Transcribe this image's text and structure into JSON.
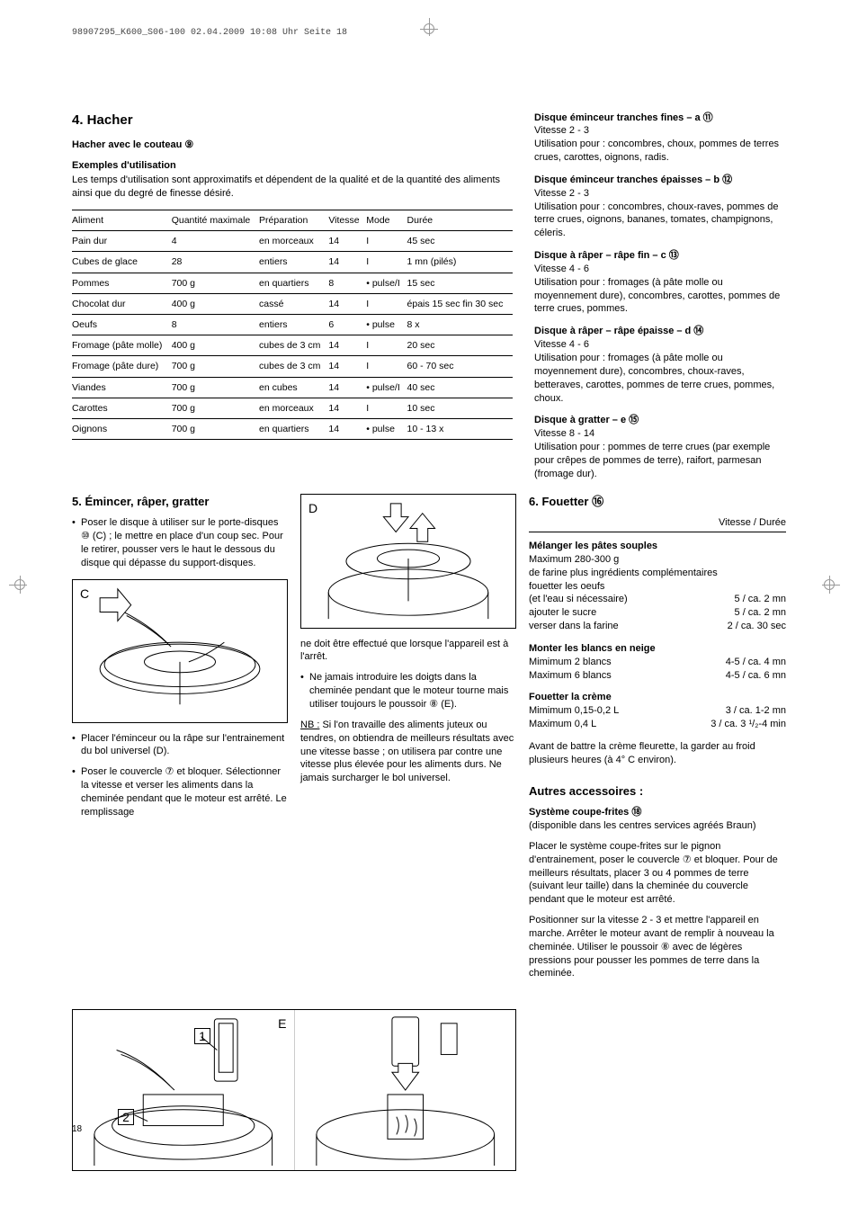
{
  "meta": {
    "header": "98907295_K600_S06-100  02.04.2009  10:08 Uhr  Seite 18",
    "pageNum": "18"
  },
  "sec4": {
    "title": "4. Hacher",
    "sub": "Hacher avec le couteau ⑨",
    "exTitle": "Exemples d'utilisation",
    "intro": "Les temps d'utilisation sont approximatifs et dépendent de la qualité et de la quantité des aliments ainsi que du degré de finesse désiré.",
    "headers": [
      "Aliment",
      "Quantité maximale",
      "Préparation",
      "Vitesse",
      "Mode",
      "Durée"
    ],
    "rows": [
      [
        "Pain dur",
        "4",
        "en morceaux",
        "14",
        "I",
        "45 sec"
      ],
      [
        "Cubes de glace",
        "28",
        "entiers",
        "14",
        "I",
        "1 mn (pilés)"
      ],
      [
        "Pommes",
        "700 g",
        "en quartiers",
        "8",
        "• pulse/I",
        "15 sec"
      ],
      [
        "Chocolat dur",
        "400 g",
        "cassé",
        "14",
        "I",
        "épais 15 sec fin 30 sec"
      ],
      [
        "Oeufs",
        "8",
        "entiers",
        "6",
        "• pulse",
        "8 x"
      ],
      [
        "Fromage (pâte molle)",
        "400 g",
        "cubes de 3 cm",
        "14",
        "I",
        "20 sec"
      ],
      [
        "Fromage (pâte dure)",
        "700 g",
        "cubes de 3 cm",
        "14",
        "I",
        "60 - 70 sec"
      ],
      [
        "Viandes",
        "700 g",
        "en cubes",
        "14",
        "• pulse/I",
        "40 sec"
      ],
      [
        "Carottes",
        "700 g",
        "en morceaux",
        "14",
        "I",
        "10 sec"
      ],
      [
        "Oignons",
        "700 g",
        "en quartiers",
        "14",
        "• pulse",
        "10 - 13 x"
      ]
    ]
  },
  "sec5": {
    "title": "5. Émincer, râper, gratter",
    "p1": "Poser le disque à utiliser sur le porte-disques ⑩ (C) ; le mettre en place d'un coup sec. Pour le retirer, pousser vers le haut le dessous du disque qui dépasse du support-disques.",
    "p2": "Placer l'éminceur ou la râpe sur l'entrainement du bol universel (D).",
    "p3": "Poser le couvercle ⑦ et bloquer. Sélectionner la vitesse et verser les aliments dans la cheminée pendant que le moteur est arrêté. Le remplissage",
    "p4": "ne doit être effectué que lorsque l'appareil est à l'arrêt.",
    "p5": "Ne jamais introduire les doigts dans la cheminée pendant que le moteur tourne mais utiliser toujours le poussoir ⑧ (E).",
    "nb": "NB : Si l'on travaille des aliments juteux ou tendres, on obtiendra de meilleurs résultats avec une vitesse basse ; on utilisera par contre une vitesse plus élevée pour les aliments durs. Ne jamais surcharger le bol universel.",
    "labelC": "C",
    "labelD": "D",
    "labelE": "E",
    "label1": "1",
    "label2": "2"
  },
  "discs": {
    "d1t": "Disque éminceur tranches fines – a ⑪",
    "d1s": "Vitesse 2 - 3",
    "d1u": "Utilisation pour : concombres, choux, pommes de terres crues, carottes, oignons, radis.",
    "d2t": "Disque éminceur tranches épaisses – b ⑫",
    "d2s": "Vitesse 2 - 3",
    "d2u": "Utilisation pour : concombres, choux-raves, pommes de terre crues, oignons, bananes, tomates, champignons, céleris.",
    "d3t": "Disque à râper – râpe fin – c ⑬",
    "d3s": "Vitesse 4 - 6",
    "d3u": "Utilisation pour : fromages (à pâte molle ou moyennement dure), concombres, carottes, pommes de terre crues, pommes.",
    "d4t": "Disque à râper – râpe épaisse – d ⑭",
    "d4s": "Vitesse 4 - 6",
    "d4u": "Utilisation pour : fromages (à pâte molle ou moyennement dure), concombres, choux-raves, betteraves, carottes, pommes de terre crues, pommes, choux.",
    "d5t": "Disque à gratter – e ⑮",
    "d5s": "Vitesse 8 - 14",
    "d5u": "Utilisation pour : pommes de terre crues (par exemple pour crêpes de pommes de terre), raifort, parmesan (fromage dur)."
  },
  "sec6": {
    "title": "6. Fouetter ⑯",
    "speedHdr": "Vitesse / Durée",
    "b1t": "Mélanger les pâtes souples",
    "b1l1": "Maximum 280-300 g",
    "b1l2": "de farine plus ingrédients complémentaires",
    "b1l3": "fouetter les oeufs",
    "b1r1a": "(et l'eau si nécessaire)",
    "b1r1b": "5 / ca. 2 mn",
    "b1r2a": "ajouter le sucre",
    "b1r2b": "5 / ca. 2 mn",
    "b1r3a": "verser dans la farine",
    "b1r3b": "2 / ca. 30 sec",
    "b2t": "Monter les blancs en neige",
    "b2r1a": "Mimimum 2 blancs",
    "b2r1b": "4-5 / ca. 4 mn",
    "b2r2a": "Maximum 6 blancs",
    "b2r2b": "4-5 / ca. 6 mn",
    "b3t": "Fouetter la crème",
    "b3r1a": "Mimimum 0,15-0,2 L",
    "b3r1b": "3 / ca. 1-2 mn",
    "b3r2a": "Maximum 0,4 L",
    "b3r2b": "3 / ca. 3 ¹/₂-4 min",
    "b3p": "Avant de battre la crème fleurette, la garder au froid plusieurs heures (à 4° C environ)."
  },
  "acc": {
    "title": "Autres accessoires :",
    "sub": "Système coupe-frites ⑱",
    "p1": "(disponible dans les centres services agréés Braun)",
    "p2": "Placer le système coupe-frites sur le pignon d'entrainement, poser le couvercle ⑦ et bloquer. Pour de meilleurs résultats, placer 3 ou 4 pommes de terre (suivant leur taille) dans la cheminée du couvercle pendant que le moteur est arrêté.",
    "p3": "Positionner sur la vitesse 2 - 3 et mettre l'appareil en marche. Arrêter le moteur avant de remplir à nouveau la cheminée. Utiliser le poussoir ⑧ avec de légères pressions pour pousser les pommes de terre dans la cheminée."
  }
}
